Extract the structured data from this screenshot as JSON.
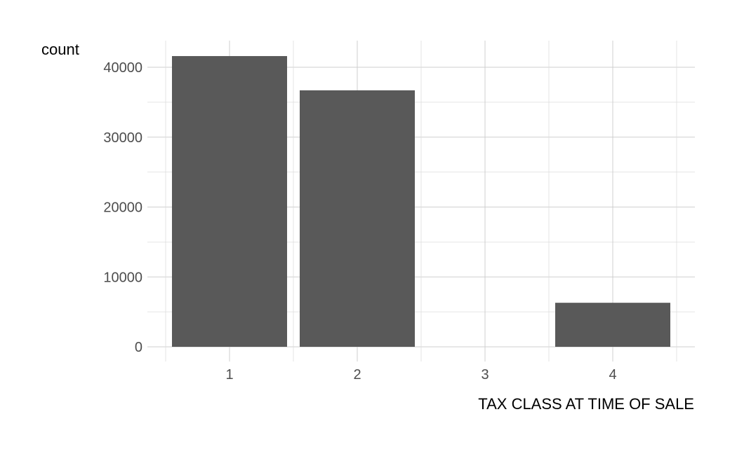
{
  "chart_data": {
    "type": "bar",
    "categories": [
      "1",
      "2",
      "3",
      "4"
    ],
    "values": [
      41600,
      36700,
      0,
      6300
    ],
    "xlabel": "TAX CLASS AT TIME OF SALE",
    "ylabel": "count",
    "ylim": [
      0,
      43500
    ],
    "yticks": [
      0,
      10000,
      20000,
      30000,
      40000
    ],
    "y_tick_labels": [
      "0",
      "10000",
      "20000",
      "30000",
      "40000"
    ],
    "grid": true,
    "legend": "none",
    "bar_color": "#595959",
    "grid_color": "#cfcfcf",
    "background": "#ffffff"
  }
}
